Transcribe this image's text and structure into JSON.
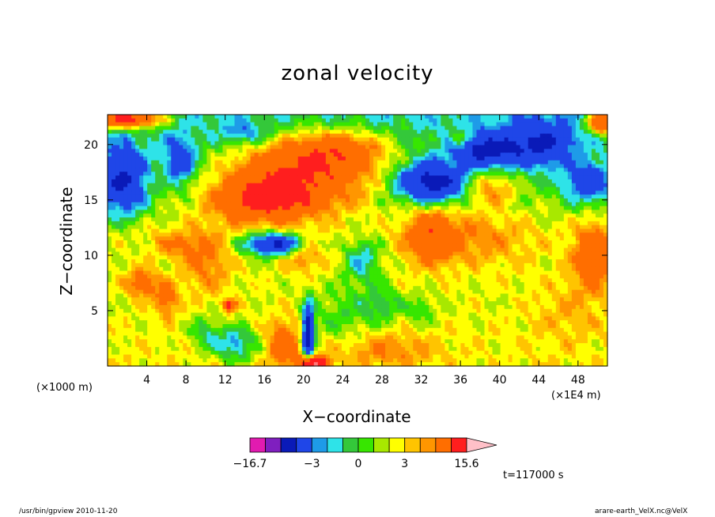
{
  "chart_data": {
    "type": "heatmap",
    "title": "zonal velocity",
    "xlabel": "X−coordinate",
    "ylabel": "Z−coordinate",
    "x_unit_left": "(×1000 m)",
    "x_unit_right": "(×1E4 m)",
    "xlim": [
      0,
      51
    ],
    "ylim": [
      0,
      22.7
    ],
    "x_ticks": [
      4,
      8,
      12,
      16,
      20,
      24,
      28,
      32,
      36,
      40,
      44,
      48
    ],
    "x_tick_labels": [
      "4",
      "8",
      "12",
      "16",
      "20",
      "24",
      "28",
      "32",
      "36",
      "40",
      "44",
      "48"
    ],
    "y_ticks": [
      5,
      10,
      15,
      20
    ],
    "y_tick_labels": [
      "5",
      "10",
      "15",
      "20"
    ],
    "colorbar": {
      "min": -16.7,
      "max": 15.6,
      "labels": [
        "−16.7",
        "−3",
        "0",
        "3",
        "15.6"
      ],
      "label_values": [
        -16.7,
        -3,
        0,
        3,
        15.6
      ],
      "levels": [
        -16.7,
        -12,
        -8,
        -4,
        -3,
        -2,
        -1,
        0,
        1,
        2,
        3,
        4,
        8,
        12,
        15.6
      ],
      "colors": [
        "#e21bb0",
        "#7f1fbf",
        "#0a1ab8",
        "#1f46e8",
        "#1e9be8",
        "#2ee3e8",
        "#34c83a",
        "#37e600",
        "#a8e800",
        "#ffff00",
        "#ffc400",
        "#ff9600",
        "#ff6e00",
        "#ff1e1e",
        "#ff7878",
        "#ffc0c8"
      ]
    },
    "annotation": "t=117000 s",
    "blobs": [
      {
        "x": 19.5,
        "z": 17.5,
        "v": 8,
        "rx": 7.5,
        "rz": 3.2
      },
      {
        "x": 16.0,
        "z": 15.0,
        "v": 7,
        "rx": 5.0,
        "rz": 2.0
      },
      {
        "x": 24.0,
        "z": 19.5,
        "v": 5,
        "rx": 5.0,
        "rz": 1.8
      },
      {
        "x": 1.5,
        "z": 16.5,
        "v": -8,
        "rx": 2.5,
        "rz": 3.0
      },
      {
        "x": 7.5,
        "z": 18.5,
        "v": -6,
        "rx": 1.5,
        "rz": 2.0
      },
      {
        "x": 14.0,
        "z": 21.0,
        "v": -3,
        "rx": 2.5,
        "rz": 1.0
      },
      {
        "x": 33.0,
        "z": 16.5,
        "v": -10,
        "rx": 3.5,
        "rz": 1.8
      },
      {
        "x": 38.5,
        "z": 19.5,
        "v": -8,
        "rx": 3.0,
        "rz": 1.4
      },
      {
        "x": 44.0,
        "z": 20.0,
        "v": -7,
        "rx": 3.5,
        "rz": 2.0
      },
      {
        "x": 49.0,
        "z": 16.5,
        "v": -6,
        "rx": 2.5,
        "rz": 1.8
      },
      {
        "x": 2.0,
        "z": 22.3,
        "v": 12,
        "rx": 3.5,
        "rz": 0.8
      },
      {
        "x": 50.5,
        "z": 22.0,
        "v": 10,
        "rx": 1.5,
        "rz": 1.0
      },
      {
        "x": 36.0,
        "z": 20.5,
        "v": 4,
        "rx": 1.0,
        "rz": 0.8
      },
      {
        "x": 39.0,
        "z": 16.0,
        "v": 4,
        "rx": 2.5,
        "rz": 1.5
      },
      {
        "x": 33.0,
        "z": 12.0,
        "v": 5,
        "rx": 2.5,
        "rz": 2.5
      },
      {
        "x": 37.5,
        "z": 11.5,
        "v": 2.5,
        "rx": 6.0,
        "rz": 2.5
      },
      {
        "x": 49.5,
        "z": 10.0,
        "v": 5,
        "rx": 2.0,
        "rz": 3.0
      },
      {
        "x": 47.0,
        "z": 5.0,
        "v": 1.5,
        "rx": 4.0,
        "rz": 3.0
      },
      {
        "x": 17.0,
        "z": 11.0,
        "v": -10,
        "rx": 3.0,
        "rz": 1.0
      },
      {
        "x": 20.0,
        "z": 10.0,
        "v": 3,
        "rx": 2.0,
        "rz": 1.5
      },
      {
        "x": 26.0,
        "z": 9.5,
        "v": -4,
        "rx": 1.8,
        "rz": 2.0
      },
      {
        "x": 24.0,
        "z": 4.5,
        "v": -2,
        "rx": 3.0,
        "rz": 2.5
      },
      {
        "x": 28.0,
        "z": 5.5,
        "v": -3,
        "rx": 2.0,
        "rz": 1.5
      },
      {
        "x": 32.0,
        "z": 5.0,
        "v": -2,
        "rx": 1.5,
        "rz": 1.3
      },
      {
        "x": 10.0,
        "z": 3.0,
        "v": -3,
        "rx": 1.5,
        "rz": 1.5
      },
      {
        "x": 13.0,
        "z": 2.0,
        "v": -5,
        "rx": 2.0,
        "rz": 1.5
      },
      {
        "x": 18.0,
        "z": 2.0,
        "v": 5,
        "rx": 1.5,
        "rz": 2.0
      },
      {
        "x": 20.5,
        "z": 3.0,
        "v": -12,
        "rx": 0.6,
        "rz": 2.5
      },
      {
        "x": 21.0,
        "z": 0.3,
        "v": 12,
        "rx": 1.5,
        "rz": 0.6
      },
      {
        "x": 12.5,
        "z": 5.5,
        "v": 8,
        "rx": 0.6,
        "rz": 0.5
      },
      {
        "x": 3.5,
        "z": 7.5,
        "v": 5,
        "rx": 1.5,
        "rz": 1.2
      },
      {
        "x": 6.0,
        "z": 6.0,
        "v": 4,
        "rx": 1.2,
        "rz": 1.5
      },
      {
        "x": 7.0,
        "z": 11.0,
        "v": 2.5,
        "rx": 2.5,
        "rz": 1.2
      },
      {
        "x": 3.0,
        "z": 12.5,
        "v": 0.5,
        "rx": 3.0,
        "rz": 1.2
      },
      {
        "x": 10.0,
        "z": 9.5,
        "v": 3,
        "rx": 2.5,
        "rz": 3.0
      },
      {
        "x": 28.5,
        "z": 1.5,
        "v": 2.5,
        "rx": 5.0,
        "rz": 1.5
      }
    ]
  },
  "footer": {
    "left": "/usr/bin/gpview   2010-11-20",
    "right": "arare-earth_VelX.nc@VelX"
  }
}
